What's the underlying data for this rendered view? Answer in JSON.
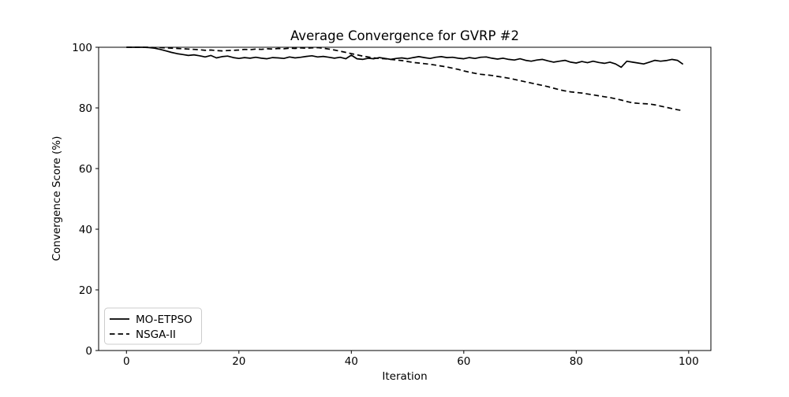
{
  "figure": {
    "background_color": "#ffffff",
    "line_color": "#000000",
    "axis_color": "#000000",
    "legend_border_color": "#cccccc"
  },
  "chart_data": {
    "type": "line",
    "title": "Average Convergence for GVRP #2",
    "xlabel": "Iteration",
    "ylabel": "Convergence Score (%)",
    "xlim": [
      -4.95,
      103.95
    ],
    "ylim": [
      0,
      100
    ],
    "xticks": [
      0,
      20,
      40,
      60,
      80,
      100
    ],
    "yticks": [
      0,
      20,
      40,
      60,
      80,
      100
    ],
    "grid": false,
    "legend_position": "lower left",
    "x_start": 0,
    "x_step": 1,
    "n_points": 100,
    "series": [
      {
        "name": "MO-ETPSO",
        "style": "solid",
        "color": "#000000",
        "values": [
          100,
          100,
          100,
          100,
          99.9,
          99.7,
          99.3,
          98.8,
          98.3,
          97.9,
          97.6,
          97.3,
          97.5,
          97.2,
          96.8,
          97.3,
          96.5,
          96.9,
          97.1,
          96.6,
          96.3,
          96.6,
          96.4,
          96.7,
          96.4,
          96.2,
          96.6,
          96.5,
          96.3,
          96.8,
          96.5,
          96.7,
          97.0,
          97.2,
          96.8,
          97.0,
          96.7,
          96.4,
          96.7,
          96.2,
          97.4,
          96.2,
          96.0,
          96.4,
          96.2,
          96.6,
          96.3,
          96.0,
          96.3,
          96.5,
          96.2,
          96.6,
          96.9,
          96.6,
          96.3,
          96.7,
          96.9,
          96.6,
          96.7,
          96.4,
          96.2,
          96.6,
          96.3,
          96.7,
          96.8,
          96.4,
          96.1,
          96.4,
          96.0,
          95.8,
          96.2,
          95.7,
          95.4,
          95.8,
          96.0,
          95.5,
          95.1,
          95.4,
          95.7,
          95.1,
          94.8,
          95.3,
          94.9,
          95.4,
          95.0,
          94.7,
          95.1,
          94.5,
          93.4,
          95.4,
          95.1,
          94.8,
          94.5,
          95.1,
          95.7,
          95.4,
          95.6,
          96.0,
          95.7,
          94.4
        ]
      },
      {
        "name": "NSGA-II",
        "style": "dashed",
        "color": "#000000",
        "values": [
          100,
          100,
          100,
          100,
          100,
          99.9,
          99.9,
          99.8,
          99.7,
          99.6,
          99.5,
          99.4,
          99.3,
          99.2,
          99.0,
          99.1,
          98.9,
          98.8,
          98.9,
          99.0,
          99.1,
          99.3,
          99.2,
          99.4,
          99.3,
          99.5,
          99.4,
          99.6,
          99.5,
          99.7,
          99.6,
          99.8,
          99.7,
          99.8,
          99.9,
          99.7,
          99.4,
          99.1,
          98.7,
          98.3,
          97.9,
          97.5,
          97.1,
          96.8,
          96.5,
          96.3,
          96.2,
          96.0,
          95.8,
          95.6,
          95.3,
          95.0,
          94.8,
          94.6,
          94.4,
          94.1,
          93.8,
          93.5,
          93.1,
          92.7,
          92.2,
          91.8,
          91.4,
          91.1,
          90.9,
          90.7,
          90.4,
          90.1,
          89.8,
          89.4,
          89.0,
          88.6,
          88.2,
          87.8,
          87.4,
          87.0,
          86.5,
          86.0,
          85.6,
          85.3,
          85.1,
          84.9,
          84.6,
          84.3,
          84.0,
          83.7,
          83.4,
          83.0,
          82.6,
          82.1,
          81.7,
          81.5,
          81.4,
          81.3,
          81.0,
          80.6,
          80.2,
          79.8,
          79.4,
          79.1
        ]
      }
    ]
  }
}
